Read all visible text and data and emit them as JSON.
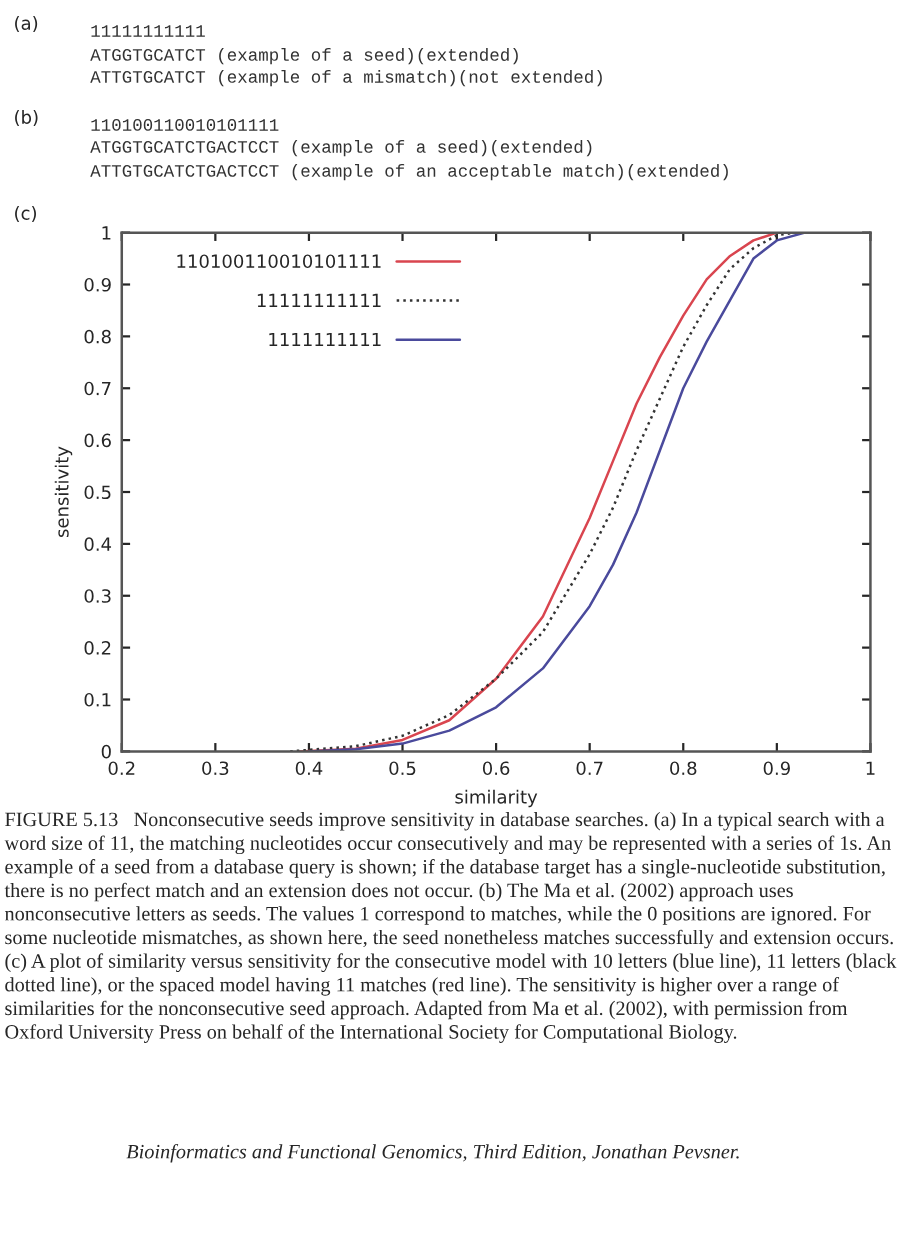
{
  "chart_data": {
    "type": "line",
    "xlabel": "similarity",
    "ylabel": "sensitivity",
    "series": [
      {
        "name": "110100110010101111",
        "color": "#d9454f",
        "line_style": "solid",
        "x": [
          0.39,
          0.45,
          0.5,
          0.55,
          0.6,
          0.65,
          0.7,
          0.725,
          0.75,
          0.775,
          0.8,
          0.825,
          0.85,
          0.875,
          0.9
        ],
        "values": [
          0,
          0.005,
          0.022,
          0.06,
          0.14,
          0.26,
          0.45,
          0.56,
          0.67,
          0.76,
          0.84,
          0.91,
          0.955,
          0.985,
          1.0
        ]
      },
      {
        "name": "11111111111",
        "color": "#333333",
        "line_style": "dotted",
        "x": [
          0.38,
          0.45,
          0.5,
          0.55,
          0.6,
          0.65,
          0.7,
          0.725,
          0.75,
          0.775,
          0.8,
          0.825,
          0.85,
          0.875,
          0.9,
          0.92
        ],
        "values": [
          0,
          0.01,
          0.03,
          0.07,
          0.14,
          0.23,
          0.38,
          0.47,
          0.58,
          0.68,
          0.78,
          0.86,
          0.93,
          0.97,
          0.995,
          1.0
        ]
      },
      {
        "name": "1111111111",
        "color": "#4a4a9c",
        "line_style": "solid",
        "x": [
          0.4,
          0.45,
          0.5,
          0.55,
          0.6,
          0.65,
          0.7,
          0.725,
          0.75,
          0.775,
          0.8,
          0.825,
          0.85,
          0.875,
          0.9,
          0.93
        ],
        "values": [
          0,
          0.004,
          0.015,
          0.04,
          0.085,
          0.16,
          0.28,
          0.36,
          0.46,
          0.58,
          0.7,
          0.79,
          0.87,
          0.95,
          0.985,
          1.0
        ]
      }
    ],
    "xlim": [
      0.2,
      1
    ],
    "ylim": [
      0,
      1
    ],
    "xticks": [
      0.2,
      0.3,
      0.4,
      0.5,
      0.6,
      0.7,
      0.8,
      0.9,
      {
        "value": 1,
        "label": "1"
      }
    ],
    "yticks": [
      {
        "value": 0,
        "label": "0"
      },
      0.1,
      0.2,
      0.3,
      0.4,
      0.5,
      0.6,
      0.7,
      0.8,
      0.9,
      {
        "value": 1,
        "label": "1"
      }
    ],
    "grid": false,
    "legend": "top left",
    "annotations": [
      "(a)",
      "11111111111",
      "ATGGTGCATCT (example of a seed)(extended)",
      "ATTGTGCATCT (example of a mismatch)(not extended)",
      "(b)",
      "110100110010101111",
      "ATGGTGCATCTGACTCCT (example of a seed)(extended)",
      "ATTGTGCATCTGACTCCT (example of an acceptable match)(extended)",
      "(c)",
      "FIGURE 5.13   Nonconsecutive seeds improve sensitivity in database searches. (a) In a typical search with a word size of 11, the matching nucleotides occur consecutively and may be represented with a series of 1s. An example of a seed from a database query is shown; if the database target has a single-nucleotide substitution, there is no perfect match and an extension does not occur. (b) The Ma et al. (2002) approach uses nonconsecutive letters as seeds. The values 1 correspond to matches, while the 0 positions are ignored. For some nucleotide mismatches, as shown here, the seed nonetheless matches successfully and extension occurs. (c) A plot of similarity versus sensitivity for the consecutive model with 10 letters (blue line), 11 letters (black dotted line), or the spaced model having 11 matches (red line). The sensitivity is higher over a range of similarities for the nonconsecutive seed approach. Adapted from Ma et al. (2002), with permission from Oxford University Press on behalf of the International Society for Computational Biology.",
      "Bioinformatics and Functional Genomics, Third Edition, Jonathan Pevsner."
    ]
  }
}
